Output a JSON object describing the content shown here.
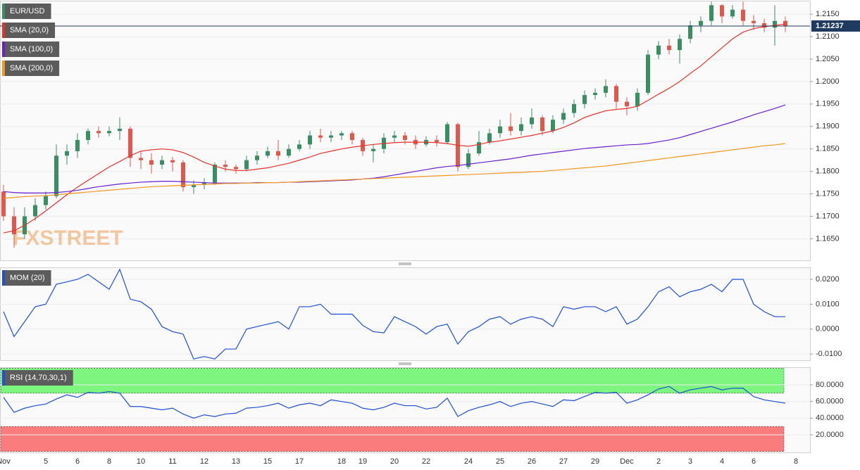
{
  "chart_data": [
    {
      "type": "candlestick",
      "title": "EUR/USD",
      "watermark": "FXSTREET",
      "categories": [
        "Nov",
        null,
        null,
        null,
        "5",
        null,
        null,
        "6",
        null,
        null,
        "8",
        null,
        null,
        "10",
        null,
        null,
        "11",
        null,
        null,
        "12",
        null,
        null,
        "13",
        null,
        null,
        "15",
        null,
        null,
        "17",
        null,
        null,
        null,
        "18",
        null,
        "19",
        null,
        null,
        "20",
        null,
        null,
        "22",
        null,
        null,
        null,
        "24",
        null,
        null,
        "25",
        null,
        null,
        "26",
        null,
        null,
        "27",
        null,
        null,
        "29",
        null,
        null,
        "Dec",
        null,
        null,
        "2",
        null,
        null,
        "3",
        null,
        null,
        "4",
        null,
        null,
        "6",
        null,
        null,
        null,
        "8"
      ],
      "open": [
        1.1755,
        1.17,
        1.166,
        1.17,
        1.1725,
        1.1745,
        1.1835,
        1.1845,
        1.187,
        1.189,
        1.1885,
        1.189,
        1.1895,
        1.183,
        1.1825,
        1.1815,
        1.1825,
        1.182,
        1.1765,
        1.177,
        1.1775,
        1.1815,
        1.181,
        1.1805,
        1.1825,
        1.1835,
        1.1845,
        1.1835,
        1.185,
        1.186,
        1.188,
        1.1875,
        1.188,
        1.1885,
        1.187,
        1.1845,
        1.185,
        1.1875,
        1.188,
        1.187,
        1.186,
        1.187,
        1.1865,
        1.1905,
        1.181,
        1.184,
        1.1865,
        1.1885,
        1.19,
        1.189,
        1.1905,
        1.192,
        1.189,
        1.1915,
        1.193,
        1.195,
        1.197,
        1.1975,
        1.199,
        1.1955,
        1.1945,
        1.1975,
        1.206,
        1.208,
        1.207,
        1.2095,
        1.2125,
        1.2135,
        1.217,
        1.2145,
        1.216,
        1.2135,
        1.213,
        1.212,
        1.2135,
        null
      ],
      "high": [
        1.177,
        1.172,
        1.172,
        1.174,
        1.1755,
        1.186,
        1.186,
        1.1885,
        1.1895,
        1.19,
        1.19,
        1.192,
        1.19,
        1.1845,
        1.184,
        1.1835,
        1.1832,
        1.1825,
        1.178,
        1.1785,
        1.182,
        1.1825,
        1.1815,
        1.1835,
        1.1845,
        1.1855,
        1.187,
        1.186,
        1.187,
        1.189,
        1.1895,
        1.189,
        1.189,
        1.189,
        1.1875,
        1.186,
        1.1885,
        1.189,
        1.1888,
        1.188,
        1.1878,
        1.188,
        1.191,
        1.1908,
        1.185,
        1.189,
        1.1895,
        1.1915,
        1.193,
        1.192,
        1.194,
        1.1925,
        1.1925,
        1.194,
        1.196,
        1.198,
        1.1985,
        1.2005,
        1.1995,
        1.1965,
        1.1985,
        1.207,
        1.209,
        1.2095,
        1.2105,
        1.2135,
        1.2145,
        1.2178,
        1.2172,
        1.217,
        1.2178,
        1.2148,
        1.214,
        1.217,
        1.2145,
        null
      ],
      "low": [
        1.169,
        1.163,
        1.165,
        1.169,
        1.1715,
        1.174,
        1.1815,
        1.183,
        1.186,
        1.1875,
        1.1878,
        1.187,
        1.181,
        1.1805,
        1.1795,
        1.1805,
        1.18,
        1.1755,
        1.175,
        1.176,
        1.177,
        1.18,
        1.1795,
        1.18,
        1.1815,
        1.183,
        1.1825,
        1.183,
        1.1845,
        1.185,
        1.1865,
        1.1865,
        1.187,
        1.186,
        1.1835,
        1.182,
        1.184,
        1.1865,
        1.186,
        1.185,
        1.1855,
        1.1855,
        1.186,
        1.18,
        1.1805,
        1.1835,
        1.186,
        1.1875,
        1.188,
        1.188,
        1.1895,
        1.188,
        1.1885,
        1.1905,
        1.192,
        1.194,
        1.196,
        1.1965,
        1.194,
        1.1925,
        1.1935,
        1.197,
        1.205,
        1.206,
        1.204,
        1.2085,
        1.211,
        1.2125,
        1.213,
        1.214,
        1.2125,
        1.2115,
        1.211,
        1.208,
        1.211,
        null
      ],
      "close": [
        1.17,
        1.166,
        1.17,
        1.1725,
        1.1745,
        1.1835,
        1.1845,
        1.187,
        1.189,
        1.1885,
        1.189,
        1.1895,
        1.183,
        1.1825,
        1.1815,
        1.1825,
        1.182,
        1.1765,
        1.177,
        1.1775,
        1.1815,
        1.181,
        1.1805,
        1.1825,
        1.1835,
        1.1845,
        1.1835,
        1.185,
        1.186,
        1.188,
        1.1875,
        1.188,
        1.1885,
        1.187,
        1.1845,
        1.185,
        1.1875,
        1.188,
        1.187,
        1.186,
        1.187,
        1.1865,
        1.1905,
        1.181,
        1.184,
        1.1865,
        1.1885,
        1.19,
        1.189,
        1.1905,
        1.192,
        1.189,
        1.1915,
        1.193,
        1.195,
        1.197,
        1.1975,
        1.199,
        1.1955,
        1.1945,
        1.1975,
        1.206,
        1.208,
        1.207,
        1.2095,
        1.2125,
        1.2135,
        1.217,
        1.2145,
        1.216,
        1.2135,
        1.213,
        1.212,
        1.2135,
        1.2124,
        null
      ],
      "up_color": "#3a8f62",
      "down_color": "#e0574c",
      "series": [
        {
          "name": "SMA (20,0)",
          "color": "#e8302a",
          "values": [
            1.1663,
            1.1668,
            1.168,
            1.1695,
            1.1712,
            1.173,
            1.1748,
            1.1765,
            1.178,
            1.1795,
            1.181,
            1.1822,
            1.1835,
            1.1845,
            1.1848,
            1.185,
            1.1848,
            1.1842,
            1.1832,
            1.182,
            1.1812,
            1.1805,
            1.1802,
            1.1802,
            1.1805,
            1.1808,
            1.1813,
            1.1818,
            1.1825,
            1.1832,
            1.184,
            1.1845,
            1.185,
            1.1854,
            1.1857,
            1.186,
            1.1862,
            1.1864,
            1.1865,
            1.1865,
            1.1865,
            1.1864,
            1.1862,
            1.1858,
            1.1856,
            1.186,
            1.1865,
            1.1868,
            1.1872,
            1.1876,
            1.188,
            1.1885,
            1.189,
            1.1898,
            1.1908,
            1.192,
            1.1928,
            1.1935,
            1.1938,
            1.194,
            1.1945,
            1.1958,
            1.1972,
            1.1985,
            1.2,
            1.2018,
            1.2035,
            1.2055,
            1.2075,
            1.2095,
            1.211,
            1.2118,
            1.2122,
            1.2125,
            1.2128,
            null
          ]
        },
        {
          "name": "SMA (100,0)",
          "color": "#6a1fd0",
          "values": [
            1.1755,
            1.1753,
            1.1752,
            1.1752,
            1.1752,
            1.1753,
            1.1755,
            1.1758,
            1.1762,
            1.1766,
            1.1769,
            1.1772,
            1.1774,
            1.1776,
            1.1777,
            1.1778,
            1.1778,
            1.1777,
            1.1776,
            1.1775,
            1.1774,
            1.1774,
            1.1774,
            1.1774,
            1.1775,
            1.1775,
            1.1775,
            1.1776,
            1.1776,
            1.1777,
            1.1778,
            1.1779,
            1.178,
            1.1781,
            1.1783,
            1.1785,
            1.1788,
            1.1792,
            1.1796,
            1.18,
            1.1804,
            1.1808,
            1.1811,
            1.1813,
            1.1816,
            1.1819,
            1.1822,
            1.1825,
            1.1828,
            1.1832,
            1.1836,
            1.1839,
            1.1842,
            1.1845,
            1.1848,
            1.1851,
            1.1853,
            1.1855,
            1.1857,
            1.1859,
            1.186,
            1.1862,
            1.1866,
            1.187,
            1.1875,
            1.1882,
            1.1889,
            1.1896,
            1.1903,
            1.191,
            1.1918,
            1.1926,
            1.1933,
            1.194,
            1.1948,
            null
          ]
        },
        {
          "name": "SMA (200,0)",
          "color": "#f2961e",
          "values": [
            1.174,
            1.1742,
            1.1744,
            1.1745,
            1.1746,
            1.1748,
            1.175,
            1.1752,
            1.1754,
            1.1756,
            1.1758,
            1.176,
            1.1762,
            1.1764,
            1.1766,
            1.1767,
            1.1768,
            1.1769,
            1.177,
            1.1771,
            1.1772,
            1.1773,
            1.1773,
            1.1774,
            1.1774,
            1.1775,
            1.1775,
            1.1776,
            1.1777,
            1.1778,
            1.1779,
            1.178,
            1.1781,
            1.1782,
            1.1783,
            1.1784,
            1.1785,
            1.1786,
            1.1787,
            1.1788,
            1.1789,
            1.179,
            1.1791,
            1.1792,
            1.1793,
            1.1794,
            1.1795,
            1.1796,
            1.1797,
            1.1798,
            1.1799,
            1.18,
            1.1802,
            1.1804,
            1.1806,
            1.1808,
            1.181,
            1.1812,
            1.1815,
            1.1818,
            1.1821,
            1.1824,
            1.1827,
            1.183,
            1.1833,
            1.1836,
            1.1839,
            1.1842,
            1.1845,
            1.1848,
            1.1851,
            1.1854,
            1.1857,
            1.1859,
            1.1862,
            null
          ]
        }
      ],
      "last_price": 1.21237,
      "last_price_color": "#1e3a5f",
      "ylim": [
        1.1602,
        1.218
      ],
      "yticks": [
        {
          "value": 1.165,
          "label": "1.1650"
        },
        {
          "value": 1.17,
          "label": "1.1700"
        },
        {
          "value": 1.175,
          "label": "1.1750"
        },
        {
          "value": 1.18,
          "label": "1.1800"
        },
        {
          "value": 1.185,
          "label": "1.1850"
        },
        {
          "value": 1.19,
          "label": "1.1900"
        },
        {
          "value": 1.195,
          "label": "1.1950"
        },
        {
          "value": 1.2,
          "label": "1.2000"
        },
        {
          "value": 1.205,
          "label": "1.2050"
        },
        {
          "value": 1.21,
          "label": "1.2100"
        },
        {
          "value": 1.215,
          "label": "1.2150"
        }
      ],
      "grid": true
    },
    {
      "type": "line",
      "series": [
        {
          "name": "MOM (20)",
          "color": "#1f4fd6",
          "values": [
            0.007,
            -0.003,
            0.003,
            0.009,
            0.01,
            0.018,
            0.019,
            0.02,
            0.022,
            0.019,
            0.016,
            0.024,
            0.012,
            0.011,
            0.008,
            0.001,
            -0.001,
            -0.002,
            -0.012,
            -0.011,
            -0.012,
            -0.008,
            -0.008,
            0.0,
            0.001,
            0.002,
            0.003,
            0.0,
            0.009,
            0.009,
            0.01,
            0.006,
            0.006,
            0.006,
            0.0015,
            -0.001,
            -0.0015,
            0.005,
            0.003,
            0.001,
            -0.002,
            0.001,
            0.002,
            -0.006,
            -0.001,
            0.001,
            0.004,
            0.005,
            0.002,
            0.004,
            0.005,
            0.004,
            0.001,
            0.009,
            0.008,
            0.009,
            0.009,
            0.007,
            0.009,
            0.002,
            0.004,
            0.009,
            0.015,
            0.017,
            0.013,
            0.015,
            0.016,
            0.018,
            0.015,
            0.02,
            0.02,
            0.01,
            0.007,
            0.005,
            0.005,
            null
          ]
        }
      ],
      "ylim": [
        -0.0125,
        0.0248
      ],
      "yticks": [
        {
          "value": -0.01,
          "label": "-0.0100"
        },
        {
          "value": 0,
          "label": "0.0000"
        },
        {
          "value": 0.01,
          "label": "0.0100"
        },
        {
          "value": 0.02,
          "label": "0.0200"
        }
      ],
      "grid": true
    },
    {
      "type": "line",
      "series": [
        {
          "name": "RSI (14,70,30,1)",
          "color": "#1f4fd6",
          "values": [
            65,
            47,
            52,
            55,
            57,
            63,
            68,
            65,
            71,
            70,
            72,
            70,
            54,
            54,
            52,
            50,
            52,
            45,
            40,
            44,
            42,
            45,
            46,
            52,
            53,
            55,
            58,
            52,
            56,
            58,
            55,
            62,
            60,
            58,
            52,
            50,
            53,
            58,
            55,
            55,
            51,
            53,
            64,
            42,
            49,
            53,
            56,
            60,
            54,
            58,
            60,
            57,
            54,
            62,
            61,
            66,
            71,
            70,
            71,
            58,
            62,
            68,
            75,
            78,
            70,
            74,
            76,
            78,
            74,
            76,
            76,
            66,
            62,
            60,
            58,
            null
          ]
        }
      ],
      "bands": [
        {
          "from": 70,
          "to": 100,
          "color": "#7ef57e"
        },
        {
          "from": 0,
          "to": 30,
          "color": "#fb7c7c"
        }
      ],
      "ylim": [
        -1.1,
        101.1
      ],
      "yticks": [
        {
          "value": 20,
          "label": "20.0000"
        },
        {
          "value": 40,
          "label": "40.0000"
        },
        {
          "value": 60,
          "label": "60.0000"
        },
        {
          "value": 80,
          "label": "80.0000"
        }
      ],
      "grid": true
    }
  ]
}
